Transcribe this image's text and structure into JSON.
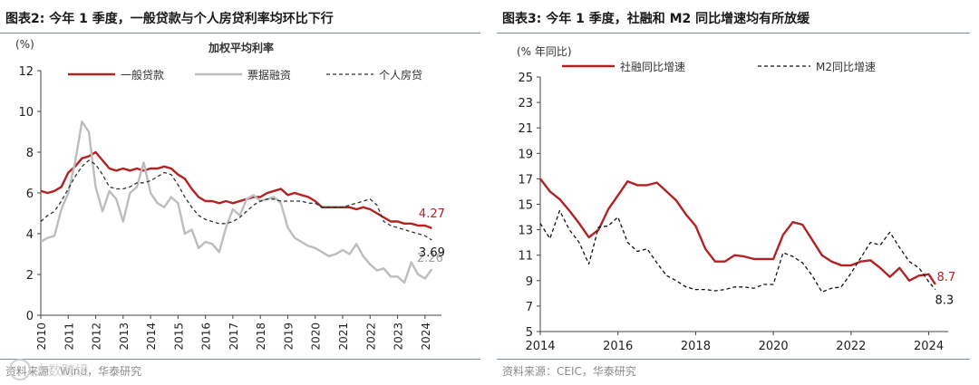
{
  "left": {
    "figure_title": "图表2:  今年 1 季度，一般贷款与个人房贷利率均环比下行",
    "source": "资料来源：Wind，华泰研究",
    "watermark": "大数跨境",
    "chart_data": {
      "type": "line",
      "title": "加权平均利率",
      "ylabel": "(%)",
      "xlabel": "",
      "ylim": [
        0,
        12
      ],
      "yticks": [
        0,
        2,
        4,
        6,
        8,
        10,
        12
      ],
      "xlim": [
        2010,
        2024.6
      ],
      "xticks": [
        2010,
        2011,
        2012,
        2013,
        2014,
        2015,
        2016,
        2017,
        2018,
        2019,
        2020,
        2021,
        2022,
        2023,
        2024
      ],
      "x_tick_labels": [
        "2010",
        "2011",
        "2012",
        "2013",
        "2014",
        "2015",
        "2016",
        "2017",
        "2018",
        "2019",
        "2020",
        "2021",
        "2022",
        "2023",
        "2024"
      ],
      "grid": false,
      "legend_position": "top",
      "series": [
        {
          "name": "一般贷款",
          "color": "#b22222",
          "style": "solid",
          "x": [
            2010.0,
            2010.25,
            2010.5,
            2010.75,
            2011.0,
            2011.25,
            2011.5,
            2011.75,
            2012.0,
            2012.25,
            2012.5,
            2012.75,
            2013.0,
            2013.25,
            2013.5,
            2013.75,
            2014.0,
            2014.25,
            2014.5,
            2014.75,
            2015.0,
            2015.25,
            2015.5,
            2015.75,
            2016.0,
            2016.25,
            2016.5,
            2016.75,
            2017.0,
            2017.25,
            2017.5,
            2017.75,
            2018.0,
            2018.25,
            2018.5,
            2018.75,
            2019.0,
            2019.25,
            2019.5,
            2019.75,
            2020.0,
            2020.25,
            2020.5,
            2020.75,
            2021.0,
            2021.25,
            2021.5,
            2021.75,
            2022.0,
            2022.25,
            2022.5,
            2022.75,
            2023.0,
            2023.25,
            2023.5,
            2023.75,
            2024.0,
            2024.25
          ],
          "y": [
            6.1,
            6.0,
            6.1,
            6.3,
            7.0,
            7.3,
            7.7,
            7.8,
            8.0,
            7.6,
            7.2,
            7.1,
            7.2,
            7.1,
            7.2,
            7.1,
            7.2,
            7.2,
            7.3,
            7.2,
            6.9,
            6.7,
            6.2,
            5.8,
            5.6,
            5.6,
            5.5,
            5.6,
            5.5,
            5.6,
            5.7,
            5.8,
            5.8,
            6.0,
            6.1,
            6.2,
            5.9,
            6.0,
            5.9,
            5.8,
            5.6,
            5.3,
            5.3,
            5.3,
            5.3,
            5.3,
            5.2,
            5.3,
            5.2,
            5.0,
            4.8,
            4.6,
            4.6,
            4.5,
            4.5,
            4.4,
            4.4,
            4.27
          ],
          "end_label": "4.27"
        },
        {
          "name": "票据融资",
          "color": "#bdbdbd",
          "style": "solid",
          "x": [
            2010.0,
            2010.25,
            2010.5,
            2010.75,
            2011.0,
            2011.25,
            2011.5,
            2011.75,
            2012.0,
            2012.25,
            2012.5,
            2012.75,
            2013.0,
            2013.25,
            2013.5,
            2013.75,
            2014.0,
            2014.25,
            2014.5,
            2014.75,
            2015.0,
            2015.25,
            2015.5,
            2015.75,
            2016.0,
            2016.25,
            2016.5,
            2016.75,
            2017.0,
            2017.25,
            2017.5,
            2017.75,
            2018.0,
            2018.25,
            2018.5,
            2018.75,
            2019.0,
            2019.25,
            2019.5,
            2019.75,
            2020.0,
            2020.25,
            2020.5,
            2020.75,
            2021.0,
            2021.25,
            2021.5,
            2021.75,
            2022.0,
            2022.25,
            2022.5,
            2022.75,
            2023.0,
            2023.25,
            2023.5,
            2023.75,
            2024.0,
            2024.25
          ],
          "y": [
            3.6,
            3.8,
            3.9,
            5.2,
            6.0,
            7.5,
            9.5,
            9.0,
            6.3,
            5.1,
            6.1,
            5.7,
            4.6,
            6.0,
            6.3,
            7.5,
            6.0,
            5.5,
            5.3,
            5.8,
            5.5,
            4.0,
            4.2,
            3.3,
            3.6,
            3.5,
            3.1,
            4.3,
            5.2,
            4.9,
            5.7,
            5.9,
            5.6,
            5.7,
            5.8,
            5.5,
            4.3,
            3.8,
            3.6,
            3.4,
            3.3,
            3.1,
            2.9,
            3.0,
            3.2,
            3.0,
            3.5,
            2.9,
            2.5,
            2.2,
            2.3,
            1.9,
            1.9,
            1.6,
            2.6,
            2.0,
            1.8,
            2.26
          ],
          "end_label": "2.26"
        },
        {
          "name": "个人房贷",
          "color": "#333333",
          "style": "dashed",
          "x": [
            2010.0,
            2010.25,
            2010.5,
            2010.75,
            2011.0,
            2011.25,
            2011.5,
            2011.75,
            2012.0,
            2012.25,
            2012.5,
            2012.75,
            2013.0,
            2013.25,
            2013.5,
            2013.75,
            2014.0,
            2014.25,
            2014.5,
            2014.75,
            2015.0,
            2015.25,
            2015.5,
            2015.75,
            2016.0,
            2016.25,
            2016.5,
            2016.75,
            2017.0,
            2017.25,
            2017.5,
            2017.75,
            2018.0,
            2018.25,
            2018.5,
            2018.75,
            2019.0,
            2019.25,
            2019.5,
            2019.75,
            2020.0,
            2020.25,
            2020.5,
            2020.75,
            2021.0,
            2021.25,
            2021.5,
            2021.75,
            2022.0,
            2022.25,
            2022.5,
            2022.75,
            2023.0,
            2023.25,
            2023.5,
            2023.75,
            2024.0,
            2024.25
          ],
          "y": [
            4.6,
            4.9,
            5.1,
            5.6,
            6.2,
            6.8,
            7.3,
            7.6,
            7.4,
            6.9,
            6.3,
            6.2,
            6.2,
            6.3,
            6.5,
            6.5,
            6.6,
            6.8,
            7.0,
            6.9,
            6.4,
            5.8,
            5.3,
            4.9,
            4.7,
            4.6,
            4.5,
            4.5,
            4.6,
            4.8,
            5.1,
            5.4,
            5.6,
            5.7,
            5.7,
            5.6,
            5.6,
            5.6,
            5.6,
            5.5,
            5.5,
            5.3,
            5.3,
            5.3,
            5.3,
            5.4,
            5.5,
            5.6,
            5.7,
            5.4,
            4.6,
            4.4,
            4.3,
            4.2,
            4.1,
            4.0,
            3.9,
            3.69
          ],
          "end_label": "3.69"
        }
      ]
    }
  },
  "right": {
    "figure_title": "图表3:  今年 1 季度，社融和 M2 同比增速均有所放缓",
    "source": "资料来源：CEIC，华泰研究",
    "chart_data": {
      "type": "line",
      "title": "",
      "ylabel": "(% 年同比)",
      "xlabel": "",
      "ylim": [
        5,
        25
      ],
      "yticks": [
        5,
        7,
        9,
        11,
        13,
        15,
        17,
        19,
        21,
        23,
        25
      ],
      "xlim": [
        2014,
        2024.5
      ],
      "xticks": [
        2014,
        2016,
        2018,
        2020,
        2022,
        2024
      ],
      "x_tick_labels": [
        "2014",
        "2016",
        "2018",
        "2020",
        "2022",
        "2024"
      ],
      "grid": false,
      "legend_position": "top",
      "series": [
        {
          "name": "社融同比增速",
          "color": "#b22222",
          "style": "solid",
          "x": [
            2014.0,
            2014.25,
            2014.5,
            2014.75,
            2015.0,
            2015.25,
            2015.5,
            2015.75,
            2016.0,
            2016.25,
            2016.5,
            2016.75,
            2017.0,
            2017.25,
            2017.5,
            2017.75,
            2018.0,
            2018.25,
            2018.5,
            2018.75,
            2019.0,
            2019.25,
            2019.5,
            2019.75,
            2020.0,
            2020.25,
            2020.5,
            2020.75,
            2021.0,
            2021.25,
            2021.5,
            2021.75,
            2022.0,
            2022.25,
            2022.5,
            2022.75,
            2023.0,
            2023.25,
            2023.5,
            2023.75,
            2024.0,
            2024.17
          ],
          "y": [
            17.0,
            16.0,
            15.4,
            14.5,
            13.5,
            12.4,
            13.0,
            14.6,
            15.7,
            16.8,
            16.5,
            16.5,
            16.7,
            16.0,
            15.3,
            14.2,
            13.3,
            11.5,
            10.5,
            10.5,
            11.0,
            10.9,
            10.7,
            10.7,
            10.7,
            12.6,
            13.6,
            13.4,
            12.2,
            11.0,
            10.5,
            10.2,
            10.2,
            10.5,
            10.6,
            10.0,
            9.3,
            10.0,
            9.0,
            9.4,
            9.5,
            8.7
          ],
          "end_label": "8.7"
        },
        {
          "name": "M2同比增速",
          "color": "#111111",
          "style": "dashed",
          "x": [
            2014.0,
            2014.25,
            2014.5,
            2014.75,
            2015.0,
            2015.25,
            2015.5,
            2015.75,
            2016.0,
            2016.25,
            2016.5,
            2016.75,
            2017.0,
            2017.25,
            2017.5,
            2017.75,
            2018.0,
            2018.25,
            2018.5,
            2018.75,
            2019.0,
            2019.25,
            2019.5,
            2019.75,
            2020.0,
            2020.25,
            2020.5,
            2020.75,
            2021.0,
            2021.25,
            2021.5,
            2021.75,
            2022.0,
            2022.25,
            2022.5,
            2022.75,
            2023.0,
            2023.25,
            2023.5,
            2023.75,
            2024.0,
            2024.17
          ],
          "y": [
            13.5,
            12.3,
            14.5,
            13.0,
            12.0,
            10.3,
            13.2,
            13.3,
            14.0,
            12.0,
            11.3,
            11.5,
            10.4,
            9.4,
            9.0,
            8.5,
            8.3,
            8.3,
            8.2,
            8.3,
            8.5,
            8.5,
            8.4,
            8.7,
            8.7,
            11.2,
            10.9,
            10.4,
            9.4,
            8.1,
            8.4,
            8.5,
            9.6,
            10.8,
            12.0,
            11.8,
            12.8,
            11.6,
            10.5,
            10.0,
            8.9,
            8.3
          ],
          "end_label": "8.3"
        }
      ]
    }
  }
}
